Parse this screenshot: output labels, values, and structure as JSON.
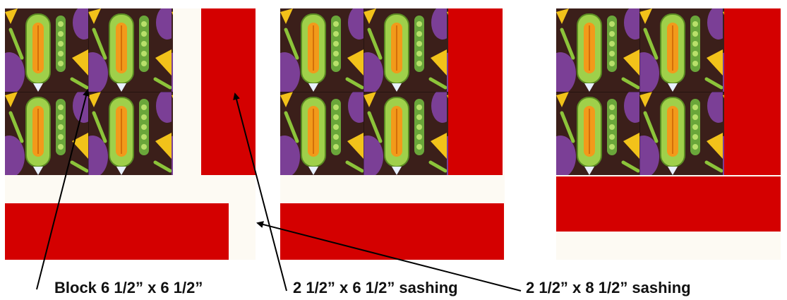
{
  "labels": {
    "block": "Block 6 1/2” x 6 1/2”",
    "short_sashing": "2 1/2” x 6 1/2” sashing",
    "long_sashing": "2 1/2” x 8 1/2” sashing"
  },
  "colors": {
    "sashing_red": "#d40000",
    "background_cream": "#fdfaf3",
    "fabric_brown": "#3b1f1a"
  },
  "icons": {
    "fabric": "corn-and-peapod-print",
    "pointer": "arrow"
  }
}
